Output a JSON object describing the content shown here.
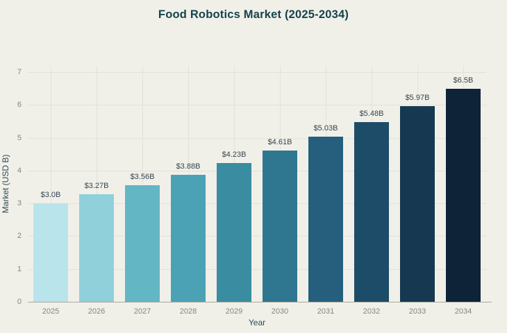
{
  "chart_data": {
    "type": "bar",
    "title": "Food Robotics Market (2025-2034)",
    "xlabel": "Year",
    "ylabel": "Market (USD B)",
    "categories": [
      "2025",
      "2026",
      "2027",
      "2028",
      "2029",
      "2030",
      "2031",
      "2032",
      "2033",
      "2034"
    ],
    "values": [
      3.0,
      3.27,
      3.56,
      3.88,
      4.23,
      4.61,
      5.03,
      5.48,
      5.97,
      6.5
    ],
    "value_labels": [
      "$3.0B",
      "$3.27B",
      "$3.56B",
      "$3.88B",
      "$4.23B",
      "$4.61B",
      "$5.03B",
      "$5.48B",
      "$5.97B",
      "$6.5B"
    ],
    "bar_colors": [
      "#b9e4ec",
      "#8fd0da",
      "#63b6c4",
      "#4aa2b4",
      "#3a8ca0",
      "#2f7690",
      "#255f7d",
      "#1d4c69",
      "#163951",
      "#0e2338"
    ],
    "ylim": [
      0,
      7
    ],
    "yticks": [
      0,
      1,
      2,
      3,
      4,
      5,
      6,
      7
    ],
    "grid": "on",
    "legend": "none"
  },
  "colors": {
    "background": "#f0f0e9",
    "title_text": "#16434c",
    "axis_title_text": "#2d4a52",
    "tick_text": "#85857c",
    "value_label_text": "#36444f",
    "gridline": "#e2e2d9",
    "axis_line": "#a9a9a0"
  }
}
